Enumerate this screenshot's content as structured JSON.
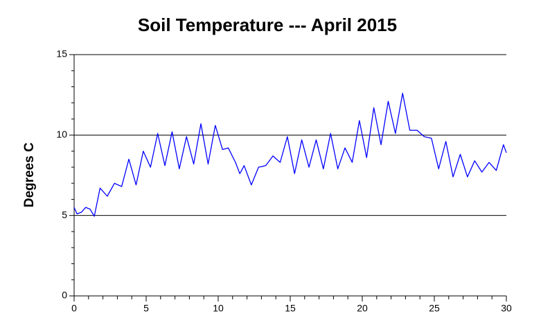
{
  "chart_data": {
    "type": "line",
    "title": "Soil Temperature --- April 2015",
    "y_label": "Degrees C",
    "x": [
      0,
      0.2,
      0.5,
      0.8,
      1.1,
      1.4,
      1.8,
      2.3,
      2.8,
      3.3,
      3.8,
      4.3,
      4.8,
      5.3,
      5.8,
      6.3,
      6.8,
      7.3,
      7.8,
      8.3,
      8.8,
      9.3,
      9.8,
      10.3,
      10.7,
      11.2,
      11.5,
      11.8,
      12.3,
      12.8,
      13.3,
      13.8,
      14.3,
      14.8,
      15.3,
      15.8,
      16.3,
      16.8,
      17.3,
      17.8,
      18.3,
      18.8,
      19.3,
      19.8,
      20.3,
      20.8,
      21.3,
      21.8,
      22.3,
      22.8,
      23.3,
      23.8,
      24.3,
      24.8,
      25.3,
      25.8,
      26.3,
      26.8,
      27.3,
      27.8,
      28.3,
      28.8,
      29.3,
      29.8,
      30
    ],
    "series": [
      {
        "name": "Soil Temperature",
        "color": "#0000ff",
        "values": [
          5.5,
          5.1,
          5.2,
          5.5,
          5.4,
          4.95,
          6.7,
          6.2,
          7.0,
          6.8,
          8.5,
          6.9,
          9.0,
          8.0,
          10.1,
          8.1,
          10.2,
          7.9,
          9.9,
          8.2,
          10.7,
          8.2,
          10.6,
          9.1,
          9.2,
          8.3,
          7.6,
          8.1,
          6.9,
          8.0,
          8.1,
          8.7,
          8.3,
          9.9,
          7.6,
          9.7,
          8.0,
          9.7,
          7.9,
          10.1,
          7.9,
          9.2,
          8.3,
          10.9,
          8.6,
          11.7,
          9.4,
          12.1,
          10.1,
          12.6,
          10.3,
          10.3,
          9.9,
          9.8,
          7.9,
          9.6,
          7.4,
          8.8,
          7.4,
          8.4,
          7.7,
          8.3,
          7.8,
          9.4,
          8.9
        ]
      }
    ],
    "xlim": [
      0,
      30
    ],
    "xticks": [
      0,
      5,
      10,
      15,
      20,
      25,
      30
    ],
    "ylim": [
      0,
      15
    ],
    "yticks": [
      0,
      5,
      10,
      15
    ],
    "grid": true
  }
}
